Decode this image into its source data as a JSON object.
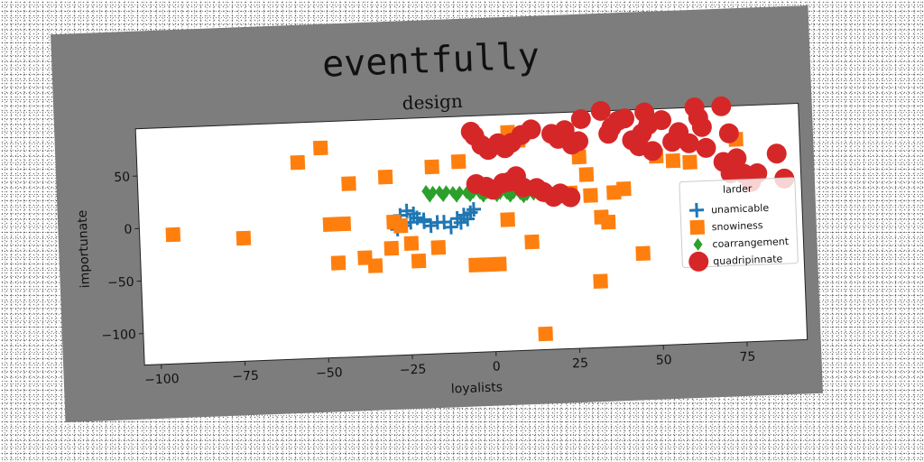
{
  "chart_data": {
    "type": "scatter",
    "suptitle": "eventfully",
    "title": "design",
    "xlabel": "loyalists",
    "ylabel": "importunate",
    "xlim": [
      -105,
      93
    ],
    "ylim": [
      -130,
      95
    ],
    "xticks": [
      -100,
      -75,
      -50,
      -25,
      0,
      25,
      50,
      75
    ],
    "xtick_labels": [
      "−100",
      "−75",
      "−50",
      "−25",
      "0",
      "25",
      "50",
      "75"
    ],
    "yticks": [
      -100,
      -50,
      0,
      50
    ],
    "ytick_labels": [
      "−100",
      "−50",
      "0",
      "50"
    ],
    "grid": false,
    "legend": {
      "title": "larder",
      "placement": "right"
    },
    "series": [
      {
        "name": "unamicable",
        "marker": "plus",
        "color": "#1f77b4",
        "points": [
          [
            -25,
            7
          ],
          [
            -23,
            4
          ],
          [
            -27,
            3
          ],
          [
            -22,
            0
          ],
          [
            -24,
            -4
          ],
          [
            -26,
            -7
          ],
          [
            -20,
            -4
          ],
          [
            -18,
            -8
          ],
          [
            -16,
            -5
          ],
          [
            -14,
            -5
          ],
          [
            -12,
            -10
          ],
          [
            -9,
            -6
          ],
          [
            -7,
            -3
          ],
          [
            -6,
            3
          ],
          [
            -5,
            6
          ],
          [
            -8,
            1
          ],
          [
            -20,
            -2
          ],
          [
            -28,
            -10
          ],
          [
            -10,
            -2
          ]
        ]
      },
      {
        "name": "snowiness",
        "marker": "square",
        "color": "#ff7f0e",
        "points": [
          [
            -95,
            -7
          ],
          [
            -74,
            -13
          ],
          [
            -57,
            57
          ],
          [
            -50,
            70
          ],
          [
            -48,
            -3
          ],
          [
            -42,
            35
          ],
          [
            -38,
            -36
          ],
          [
            -35,
            -44
          ],
          [
            -46,
            -40
          ],
          [
            -44,
            -3
          ],
          [
            -31,
            40
          ],
          [
            -30,
            -28
          ],
          [
            -29,
            -3
          ],
          [
            -27,
            -7
          ],
          [
            -24,
            -24
          ],
          [
            -22,
            -41
          ],
          [
            -16,
            -29
          ],
          [
            -17,
            48
          ],
          [
            -9,
            52
          ],
          [
            -5,
            -47
          ],
          [
            -1,
            -47
          ],
          [
            2,
            -47
          ],
          [
            5,
            -5
          ],
          [
            6,
            78
          ],
          [
            9,
            70
          ],
          [
            12,
            -27
          ],
          [
            15,
            -115
          ],
          [
            18,
            17
          ],
          [
            24,
            18
          ],
          [
            27,
            52
          ],
          [
            29,
            35
          ],
          [
            30,
            15
          ],
          [
            32,
            -67
          ],
          [
            33,
            -6
          ],
          [
            35,
            -11
          ],
          [
            37,
            17
          ],
          [
            40,
            20
          ],
          [
            45,
            -42
          ],
          [
            50,
            50
          ],
          [
            55,
            45
          ],
          [
            60,
            43
          ],
          [
            74,
            63
          ],
          [
            78,
            30
          ]
        ]
      },
      {
        "name": "coarrangement",
        "marker": "diamond",
        "color": "#2ca02c",
        "points": [
          [
            -19,
            25
          ],
          [
            -17,
            24
          ],
          [
            -15,
            24
          ],
          [
            -13,
            24
          ],
          [
            -11,
            23
          ],
          [
            -9,
            23
          ],
          [
            -7,
            22
          ],
          [
            -5,
            22
          ],
          [
            -3,
            21
          ],
          [
            -1,
            21
          ],
          [
            1,
            21
          ],
          [
            3,
            20
          ],
          [
            5,
            20
          ],
          [
            7,
            20
          ],
          [
            9,
            19
          ],
          [
            11,
            18
          ],
          [
            13,
            18
          ],
          [
            15,
            17
          ],
          [
            -18,
            20
          ],
          [
            -14,
            20
          ],
          [
            -10,
            19
          ],
          [
            -6,
            19
          ],
          [
            -2,
            18
          ],
          [
            2,
            18
          ],
          [
            6,
            17
          ],
          [
            10,
            16
          ]
        ]
      },
      {
        "name": "quadripinnate",
        "marker": "circle",
        "color": "#d62728",
        "points": [
          [
            -5,
            80
          ],
          [
            -4,
            76
          ],
          [
            -2,
            67
          ],
          [
            0,
            62
          ],
          [
            3,
            68
          ],
          [
            5,
            63
          ],
          [
            7,
            68
          ],
          [
            10,
            75
          ],
          [
            13,
            80
          ],
          [
            19,
            75
          ],
          [
            21,
            70
          ],
          [
            23,
            78
          ],
          [
            25,
            64
          ],
          [
            27,
            67
          ],
          [
            28,
            88
          ],
          [
            34,
            100
          ],
          [
            36,
            73
          ],
          [
            37,
            79
          ],
          [
            39,
            85
          ],
          [
            41,
            87
          ],
          [
            43,
            66
          ],
          [
            45,
            60
          ],
          [
            46,
            72
          ],
          [
            47,
            92
          ],
          [
            48,
            80
          ],
          [
            49,
            55
          ],
          [
            52,
            84
          ],
          [
            55,
            63
          ],
          [
            57,
            72
          ],
          [
            60,
            61
          ],
          [
            62,
            100
          ],
          [
            63,
            85
          ],
          [
            64,
            76
          ],
          [
            65,
            56
          ],
          [
            70,
            101
          ],
          [
            72,
            69
          ],
          [
            70,
            42
          ],
          [
            72,
            31
          ],
          [
            74,
            45
          ],
          [
            76,
            30
          ],
          [
            78,
            22
          ],
          [
            80,
            30
          ],
          [
            86,
            48
          ],
          [
            88,
            24
          ],
          [
            -4,
            30
          ],
          [
            -1,
            27
          ],
          [
            1,
            24
          ],
          [
            4,
            30
          ],
          [
            6,
            31
          ],
          [
            8,
            36
          ],
          [
            10,
            25
          ],
          [
            14,
            24
          ],
          [
            16,
            20
          ],
          [
            19,
            15
          ],
          [
            21,
            18
          ],
          [
            24,
            14
          ]
        ]
      }
    ]
  }
}
